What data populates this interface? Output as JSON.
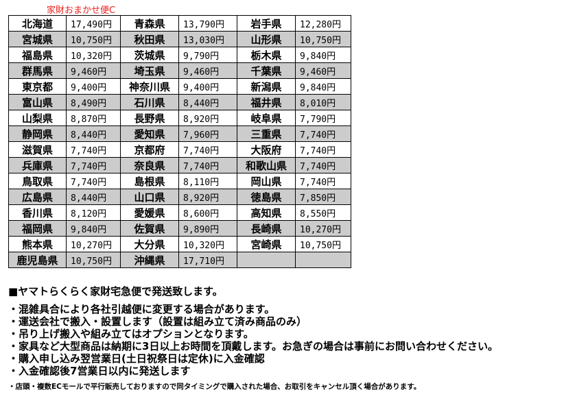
{
  "caption": "家財おまかせ便C",
  "rows": [
    [
      [
        "北海道",
        "17,490円"
      ],
      [
        "青森県",
        "13,790円"
      ],
      [
        "岩手県",
        "12,280円"
      ]
    ],
    [
      [
        "宮城県",
        "10,750円"
      ],
      [
        "秋田県",
        "13,030円"
      ],
      [
        "山形県",
        "10,750円"
      ]
    ],
    [
      [
        "福島県",
        "10,320円"
      ],
      [
        "茨城県",
        "9,790円"
      ],
      [
        "栃木県",
        "9,840円"
      ]
    ],
    [
      [
        "群馬県",
        "9,460円"
      ],
      [
        "埼玉県",
        "9,460円"
      ],
      [
        "千葉県",
        "9,460円"
      ]
    ],
    [
      [
        "東京都",
        "9,400円"
      ],
      [
        "神奈川県",
        "9,400円"
      ],
      [
        "新潟県",
        "9,840円"
      ]
    ],
    [
      [
        "富山県",
        "8,490円"
      ],
      [
        "石川県",
        "8,440円"
      ],
      [
        "福井県",
        "8,010円"
      ]
    ],
    [
      [
        "山梨県",
        "8,870円"
      ],
      [
        "長野県",
        "8,920円"
      ],
      [
        "岐阜県",
        "7,790円"
      ]
    ],
    [
      [
        "静岡県",
        "8,440円"
      ],
      [
        "愛知県",
        "7,960円"
      ],
      [
        "三重県",
        "7,740円"
      ]
    ],
    [
      [
        "滋賀県",
        "7,740円"
      ],
      [
        "京都府",
        "7,740円"
      ],
      [
        "大阪府",
        "7,740円"
      ]
    ],
    [
      [
        "兵庫県",
        "7,740円"
      ],
      [
        "奈良県",
        "7,740円"
      ],
      [
        "和歌山県",
        "7,740円"
      ]
    ],
    [
      [
        "鳥取県",
        "7,740円"
      ],
      [
        "島根県",
        "8,110円"
      ],
      [
        "岡山県",
        "7,740円"
      ]
    ],
    [
      [
        "広島県",
        "8,440円"
      ],
      [
        "山口県",
        "8,920円"
      ],
      [
        "徳島県",
        "7,850円"
      ]
    ],
    [
      [
        "香川県",
        "8,120円"
      ],
      [
        "愛媛県",
        "8,600円"
      ],
      [
        "高知県",
        "8,550円"
      ]
    ],
    [
      [
        "福岡県",
        "9,840円"
      ],
      [
        "佐賀県",
        "9,890円"
      ],
      [
        "長崎県",
        "10,270円"
      ]
    ],
    [
      [
        "熊本県",
        "10,270円"
      ],
      [
        "大分県",
        "10,320円"
      ],
      [
        "宮崎県",
        "10,750円"
      ]
    ],
    [
      [
        "鹿児島県",
        "10,750円"
      ],
      [
        "沖縄県",
        "17,710円"
      ],
      [
        "",
        ""
      ]
    ]
  ],
  "notes": {
    "heading": "■ヤマトらくらく家財宅急便で発送致します。",
    "lines": [
      "・混雑具合により各社引越便に変更する場合があります。",
      "・運送会社で搬入・設置します（設置は組み立て済み商品のみ）",
      "・吊り上げ搬入や組み立てはオプションとなります。",
      "・家具など大型商品は納期に3日以上お時間を頂戴します。お急ぎの場合は事前にお問い合わせください。",
      "・購入申し込み翌営業日(土日祝祭日は定休)に入金確認",
      "・入金確認後7営業日以内に発送します"
    ],
    "small": "・店頭・複数ECモールで平行販売しておりますので同タイミングで購入された場合、お取引をキャンセル頂く場合があります。"
  },
  "colors": {
    "alt_row": "#cccccc",
    "caption": "#e8201e"
  }
}
